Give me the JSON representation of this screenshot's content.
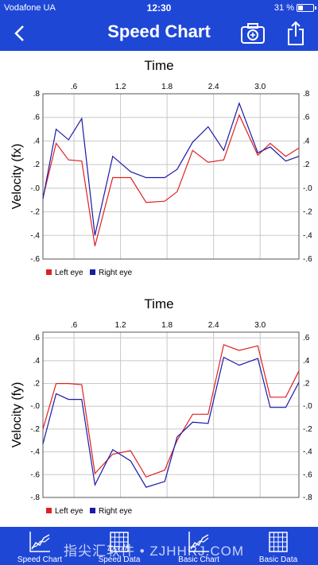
{
  "status": {
    "carrier": "Vodafone UA",
    "time": "12:30",
    "battery": "31 %",
    "battery_level": 0.31
  },
  "nav": {
    "title": "Speed Chart",
    "back_icon": "chevron-left-icon",
    "camera_icon": "camera-icon",
    "share_icon": "share-icon"
  },
  "colors": {
    "primary": "#1f47d6",
    "left_eye": "#e02020",
    "right_eye": "#1a1aa8"
  },
  "chart_data": [
    {
      "type": "line",
      "title": "Time",
      "ylabel": "Velocity (fx)",
      "xlim": [
        0.2,
        3.5
      ],
      "ylim": [
        -0.6,
        0.8
      ],
      "xticks": [
        0.6,
        1.2,
        1.8,
        2.4,
        3.0
      ],
      "xtick_labels": [
        ".6",
        "1.2",
        "1.8",
        "2.4",
        "3.0"
      ],
      "yticks": [
        0.8,
        0.6,
        0.4,
        0.2,
        0.0,
        -0.2,
        -0.4,
        -0.6
      ],
      "ytick_labels": [
        ".8",
        ".6",
        ".4",
        ".2",
        "-.0",
        "-.2",
        "-.4",
        "-.6"
      ],
      "grid": true,
      "legend_position": "bottom-left",
      "x": [
        0.2,
        0.37,
        0.53,
        0.7,
        0.87,
        1.1,
        1.33,
        1.53,
        1.77,
        1.93,
        2.13,
        2.33,
        2.53,
        2.73,
        2.97,
        3.13,
        3.33,
        3.5
      ],
      "series": [
        {
          "name": "Left eye",
          "values": [
            -0.08,
            0.38,
            0.24,
            0.23,
            -0.49,
            0.09,
            0.09,
            -0.12,
            -0.11,
            -0.03,
            0.32,
            0.22,
            0.24,
            0.62,
            0.28,
            0.38,
            0.27,
            0.34
          ]
        },
        {
          "name": "Right eye",
          "values": [
            -0.09,
            0.5,
            0.41,
            0.59,
            -0.4,
            0.27,
            0.14,
            0.09,
            0.09,
            0.16,
            0.39,
            0.52,
            0.32,
            0.72,
            0.3,
            0.35,
            0.23,
            0.27
          ]
        }
      ]
    },
    {
      "type": "line",
      "title": "Time",
      "ylabel": "Velocity (fy)",
      "xlim": [
        0.2,
        3.5
      ],
      "ylim": [
        -0.8,
        0.65
      ],
      "xticks": [
        0.6,
        1.2,
        1.8,
        2.4,
        3.0
      ],
      "xtick_labels": [
        ".6",
        "1.2",
        "1.8",
        "2.4",
        "3.0"
      ],
      "yticks": [
        0.6,
        0.4,
        0.2,
        0.0,
        -0.2,
        -0.4,
        -0.6,
        -0.8
      ],
      "ytick_labels": [
        ".6",
        ".4",
        ".2",
        "-.0",
        "-.2",
        "-.4",
        "-.6",
        "-.8"
      ],
      "grid": true,
      "legend_position": "bottom-left",
      "x": [
        0.2,
        0.37,
        0.53,
        0.7,
        0.87,
        1.1,
        1.33,
        1.53,
        1.77,
        1.93,
        2.13,
        2.33,
        2.53,
        2.73,
        2.97,
        3.13,
        3.33,
        3.5
      ],
      "series": [
        {
          "name": "Left eye",
          "values": [
            -0.2,
            0.2,
            0.2,
            0.19,
            -0.59,
            -0.42,
            -0.39,
            -0.62,
            -0.56,
            -0.3,
            -0.07,
            -0.07,
            0.54,
            0.49,
            0.53,
            0.08,
            0.08,
            0.31
          ]
        },
        {
          "name": "Right eye",
          "values": [
            -0.33,
            0.11,
            0.06,
            0.06,
            -0.69,
            -0.38,
            -0.48,
            -0.71,
            -0.66,
            -0.27,
            -0.14,
            -0.15,
            0.43,
            0.36,
            0.42,
            -0.01,
            -0.01,
            0.21
          ]
        }
      ]
    }
  ],
  "tabs": [
    {
      "label": "Speed Chart",
      "icon": "line-chart-icon"
    },
    {
      "label": "Speed Data",
      "icon": "grid-table-icon"
    },
    {
      "label": "Basic Chart",
      "icon": "line-chart-icon"
    },
    {
      "label": "Basic Data",
      "icon": "grid-table-icon"
    }
  ],
  "watermark": "指尖汇软件 • ZJHHRJ.COM"
}
